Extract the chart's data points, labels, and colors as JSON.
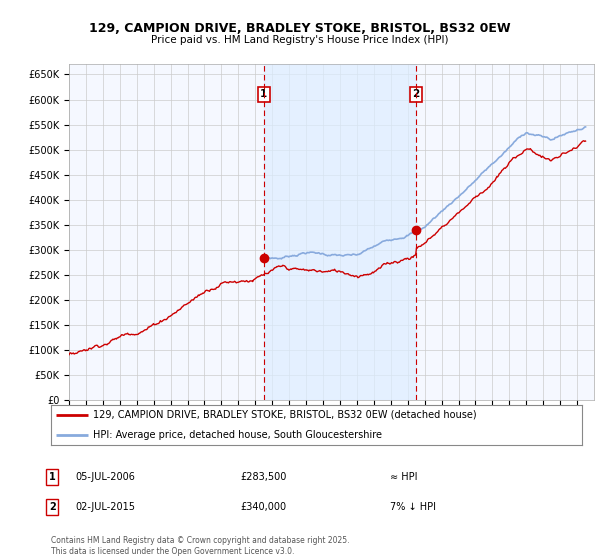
{
  "title_line1": "129, CAMPION DRIVE, BRADLEY STOKE, BRISTOL, BS32 0EW",
  "title_line2": "Price paid vs. HM Land Registry's House Price Index (HPI)",
  "ylim": [
    0,
    670000
  ],
  "yticks": [
    0,
    50000,
    100000,
    150000,
    200000,
    250000,
    300000,
    350000,
    400000,
    450000,
    500000,
    550000,
    600000,
    650000
  ],
  "ytick_labels": [
    "£0",
    "£50K",
    "£100K",
    "£150K",
    "£200K",
    "£250K",
    "£300K",
    "£350K",
    "£400K",
    "£450K",
    "£500K",
    "£550K",
    "£600K",
    "£650K"
  ],
  "background_color": "#ffffff",
  "plot_bg_color": "#f5f8ff",
  "grid_color": "#cccccc",
  "hpi_line_color": "#88aadd",
  "hpi_fill_color": "#ddeeff",
  "price_color": "#cc0000",
  "sale1_date": 2006.51,
  "sale1_price": 283500,
  "sale1_label": "1",
  "sale2_date": 2015.5,
  "sale2_price": 340000,
  "sale2_label": "2",
  "vline_color": "#cc0000",
  "marker_color": "#cc0000",
  "legend_line1": "129, CAMPION DRIVE, BRADLEY STOKE, BRISTOL, BS32 0EW (detached house)",
  "legend_line2": "HPI: Average price, detached house, South Gloucestershire",
  "note1_label": "1",
  "note1_date": "05-JUL-2006",
  "note1_price": "£283,500",
  "note1_hpi": "≈ HPI",
  "note2_label": "2",
  "note2_date": "02-JUL-2015",
  "note2_price": "£340,000",
  "note2_hpi": "7% ↓ HPI",
  "footer": "Contains HM Land Registry data © Crown copyright and database right 2025.\nThis data is licensed under the Open Government Licence v3.0.",
  "xmin": 1995,
  "xmax": 2026
}
